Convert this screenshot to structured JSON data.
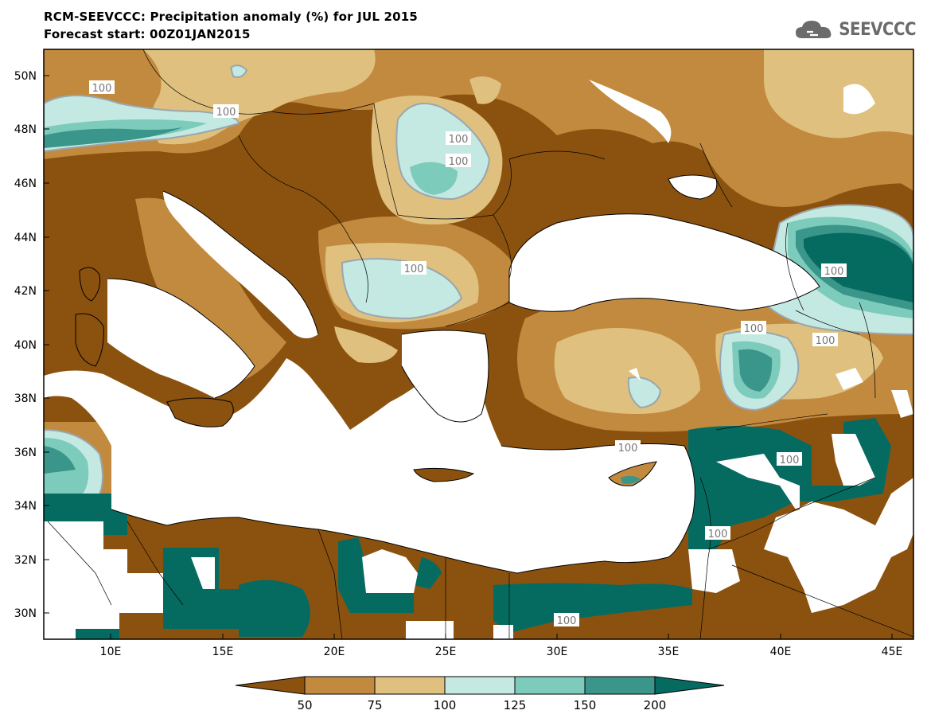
{
  "header": {
    "title": "RCM-SEEVCCC: Precipitation anomaly (%) for JUL 2015",
    "subtitle": "Forecast start: 00Z01JAN2015",
    "logo_text": "SEEVCCC"
  },
  "axes": {
    "lat_labels": [
      "50N",
      "48N",
      "46N",
      "44N",
      "42N",
      "40N",
      "38N",
      "36N",
      "34N",
      "32N",
      "30N"
    ],
    "lon_labels": [
      "10E",
      "15E",
      "20E",
      "25E",
      "30E",
      "35E",
      "40E",
      "45E"
    ]
  },
  "contour_labels": [
    "100",
    "100",
    "100",
    "100",
    "100",
    "100",
    "100",
    "100",
    "100",
    "100",
    "100",
    "100"
  ],
  "colorbar": {
    "levels": [
      "50",
      "75",
      "100",
      "125",
      "150",
      "200"
    ],
    "colors": [
      "#8b520f",
      "#c28a3e",
      "#dfc07e",
      "#c4e8e2",
      "#7ccbbb",
      "#3a958a",
      "#056b61"
    ]
  },
  "palette": {
    "very_dry": "#8b520f",
    "dry": "#c28a3e",
    "slightly_dry": "#dfc07e",
    "slightly_wet": "#c4e8e2",
    "wet": "#7ccbbb",
    "very_wet": "#3a958a",
    "extreme_wet": "#056b61",
    "sea": "#ffffff",
    "contour_line": "#9aa6ae"
  }
}
